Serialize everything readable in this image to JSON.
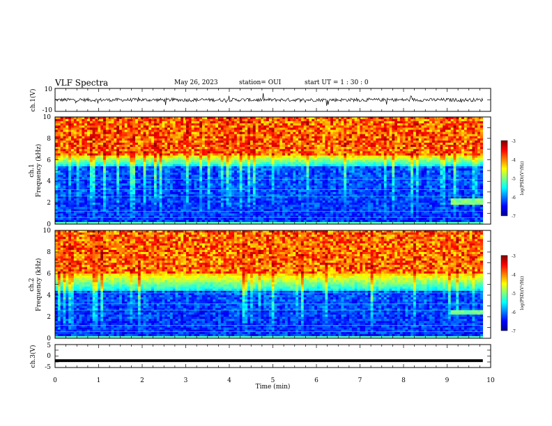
{
  "header": {
    "title": "VLF Spectra",
    "date": "May 26, 2023",
    "station": "station= OUI",
    "start": "start  UT =   1 : 30 : 0"
  },
  "chart_data": [
    {
      "type": "line",
      "panel": "ch1-waveform",
      "ylabel": "ch.1(V)",
      "ylim": [
        -10,
        10
      ],
      "yticks": [
        "10",
        "-10"
      ],
      "xlim": [
        0,
        10
      ],
      "baseline": 0,
      "typical_amplitude": 1.5
    },
    {
      "type": "heatmap",
      "panel": "ch1-spectrogram",
      "ylabel_top": "ch.1",
      "ylabel": "Frequency (kHz)",
      "ylim": [
        0,
        10
      ],
      "yticks": [
        "0",
        "2",
        "4",
        "6",
        "8",
        "10"
      ],
      "xlim": [
        0,
        9.82
      ],
      "quiet_band_top_khz": 5.5,
      "hiss_band_khz": [
        6.5,
        10
      ],
      "enhanced_emission": {
        "t_min": [
          9.1,
          9.82
        ],
        "f_khz": [
          1.8,
          2.3
        ]
      },
      "colorbar": {
        "label": "log(PSD)(V²/Hz)",
        "range": [
          -7,
          -3
        ],
        "ticks": [
          "-3",
          "-4",
          "-5",
          "-6",
          "-7"
        ]
      }
    },
    {
      "type": "heatmap",
      "panel": "ch2-spectrogram",
      "ylabel_top": "ch.2",
      "ylabel": "Frequency (kHz)",
      "ylim": [
        0,
        10
      ],
      "yticks": [
        "0",
        "2",
        "4",
        "6",
        "8",
        "10"
      ],
      "xlim": [
        0,
        9.82
      ],
      "quiet_band_top_khz": 4.5,
      "hiss_band_khz": [
        6.0,
        10
      ],
      "enhanced_emission": {
        "t_min": [
          9.1,
          9.82
        ],
        "f_khz": [
          2.1,
          2.6
        ]
      },
      "colorbar": {
        "label": "log(PSD)(V²/Hz)",
        "range": [
          -7,
          -3
        ],
        "ticks": [
          "-3",
          "-4",
          "-5",
          "-6",
          "-7"
        ]
      }
    },
    {
      "type": "line",
      "panel": "ch3-waveform",
      "ylabel": "ch.3(V)",
      "ylim": [
        -5,
        5
      ],
      "yticks": [
        "5",
        "0",
        "-5"
      ],
      "xlim": [
        0,
        10
      ],
      "value": -2
    }
  ],
  "xaxis": {
    "label": "Time  (min)",
    "ticks": [
      "0",
      "1",
      "2",
      "3",
      "4",
      "5",
      "6",
      "7",
      "8",
      "9",
      "10"
    ],
    "range": [
      0,
      10
    ]
  },
  "colors": {
    "jet": [
      "#00008f",
      "#0000ff",
      "#0080ff",
      "#00ffff",
      "#80ff80",
      "#ffff00",
      "#ff8000",
      "#ff0000",
      "#800000"
    ],
    "axes": "#000000",
    "waveform": "#000000"
  }
}
